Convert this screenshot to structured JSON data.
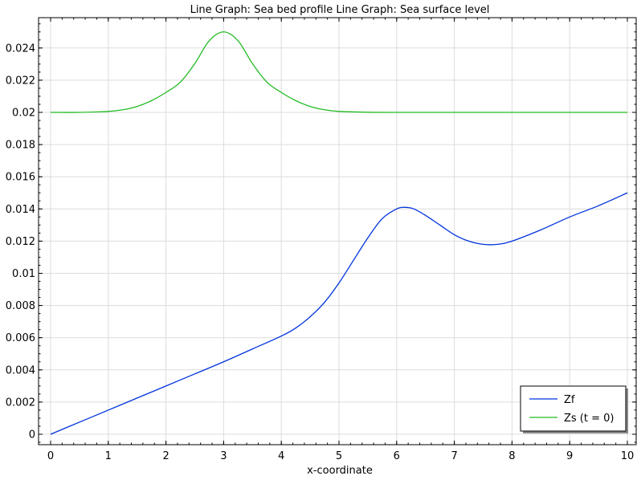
{
  "chart_data": {
    "type": "line",
    "title": "Line Graph: Sea bed profile  Line Graph: Sea surface level",
    "xlabel": "x-coordinate",
    "ylabel": "",
    "xlim": [
      0,
      10
    ],
    "ylim": [
      -0.0007,
      0.0258
    ],
    "xticks": [
      "0",
      "1",
      "2",
      "3",
      "4",
      "5",
      "6",
      "7",
      "8",
      "9",
      "10"
    ],
    "xtick_values": [
      0,
      1,
      2,
      3,
      4,
      5,
      6,
      7,
      8,
      9,
      10
    ],
    "yticks": [
      "0",
      "0.002",
      "0.004",
      "0.006",
      "0.008",
      "0.01",
      "0.012",
      "0.014",
      "0.016",
      "0.018",
      "0.02",
      "0.022",
      "0.024"
    ],
    "ytick_values": [
      0,
      0.002,
      0.004,
      0.006,
      0.008,
      0.01,
      0.012,
      0.014,
      0.016,
      0.018,
      0.02,
      0.022,
      0.024
    ],
    "grid": true,
    "legend_position": "bottom-right",
    "series": [
      {
        "name": "Zf",
        "color": "#0033dd",
        "x": [
          0,
          0.5,
          1,
          1.5,
          2,
          2.5,
          3,
          3.5,
          4,
          4.25,
          4.5,
          4.75,
          5,
          5.25,
          5.5,
          5.75,
          6,
          6.15,
          6.3,
          6.5,
          6.75,
          7,
          7.25,
          7.5,
          7.75,
          8,
          8.5,
          9,
          9.5,
          10
        ],
        "y": [
          0,
          0.00075,
          0.0015,
          0.00225,
          0.003,
          0.00375,
          0.0045,
          0.0053,
          0.0061,
          0.0066,
          0.0073,
          0.0082,
          0.0094,
          0.0108,
          0.0122,
          0.0134,
          0.014,
          0.0141,
          0.014,
          0.0136,
          0.013,
          0.0124,
          0.012,
          0.0118,
          0.0118,
          0.012,
          0.0127,
          0.0135,
          0.0142,
          0.015
        ]
      },
      {
        "name": "Zs (t = 0)",
        "color": "#22bb22",
        "x": [
          0,
          0.5,
          1,
          1.25,
          1.5,
          1.75,
          2,
          2.25,
          2.5,
          2.75,
          3,
          3.25,
          3.5,
          3.75,
          4,
          4.25,
          4.5,
          4.75,
          5,
          5.5,
          6,
          7,
          8,
          9,
          10
        ],
        "y": [
          0.02,
          0.02,
          0.02006,
          0.02016,
          0.02037,
          0.02073,
          0.02124,
          0.02188,
          0.02303,
          0.02445,
          0.025,
          0.02445,
          0.02303,
          0.02188,
          0.02124,
          0.02073,
          0.02037,
          0.02016,
          0.02006,
          0.02001,
          0.02,
          0.02,
          0.02,
          0.02,
          0.02
        ]
      }
    ]
  }
}
